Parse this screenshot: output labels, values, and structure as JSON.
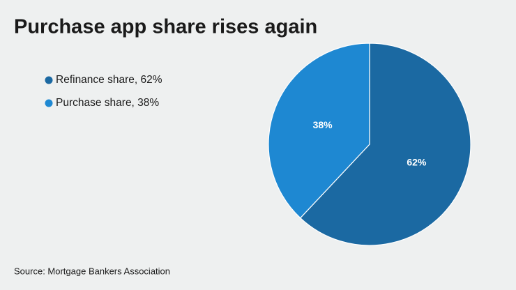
{
  "chart_data": {
    "type": "pie",
    "title": "Purchase app share rises again",
    "categories": [
      "Refinance share, 62%",
      "Purchase share, 38%"
    ],
    "values": [
      62,
      38
    ],
    "value_labels": [
      "62%",
      "38%"
    ],
    "colors": [
      "#1b69a2",
      "#1e88d2"
    ],
    "legend": "top-left",
    "source": "Source: Mortgage Bankers Association"
  }
}
